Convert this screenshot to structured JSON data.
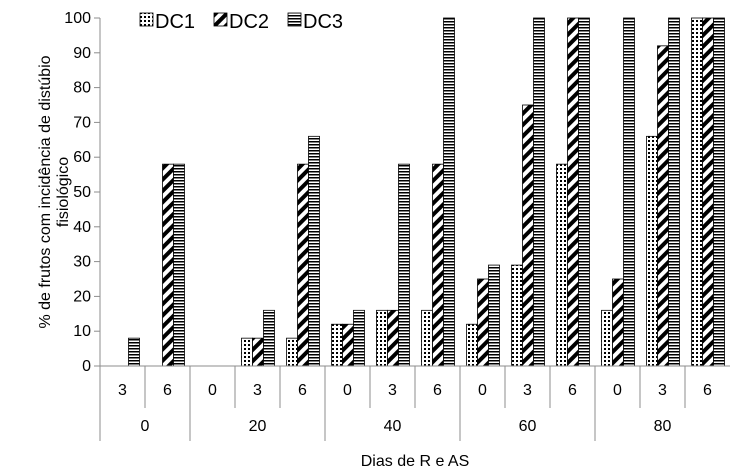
{
  "chart_data": {
    "type": "bar",
    "title": "",
    "xlabel": "Dias de R e AS",
    "ylabel_lines": [
      "% de frutos com incidência de distúbio",
      "fisiológico"
    ],
    "ylim": [
      0,
      100
    ],
    "yticks": [
      0,
      10,
      20,
      30,
      40,
      50,
      60,
      70,
      80,
      90,
      100
    ],
    "grid": false,
    "legend_placement": "top-left",
    "groups": [
      {
        "label": "0",
        "subcategories": [
          "3",
          "6"
        ]
      },
      {
        "label": "20",
        "subcategories": [
          "0",
          "3",
          "6"
        ]
      },
      {
        "label": "40",
        "subcategories": [
          "0",
          "3",
          "6"
        ]
      },
      {
        "label": "60",
        "subcategories": [
          "0",
          "3",
          "6"
        ]
      },
      {
        "label": "80",
        "subcategories": [
          "0",
          "3",
          "6"
        ]
      }
    ],
    "series": [
      {
        "name": "DC1",
        "pattern": "dots",
        "values": [
          0,
          0,
          0,
          8,
          8,
          12,
          16,
          16,
          12,
          29,
          58,
          16,
          66,
          100
        ]
      },
      {
        "name": "DC2",
        "pattern": "diagonal",
        "values": [
          0,
          58,
          0,
          8,
          58,
          12,
          16,
          58,
          25,
          75,
          100,
          25,
          92,
          100
        ]
      },
      {
        "name": "DC3",
        "pattern": "horizontal",
        "values": [
          8,
          58,
          0,
          16,
          66,
          16,
          58,
          100,
          29,
          100,
          100,
          100,
          100,
          100
        ]
      }
    ]
  }
}
